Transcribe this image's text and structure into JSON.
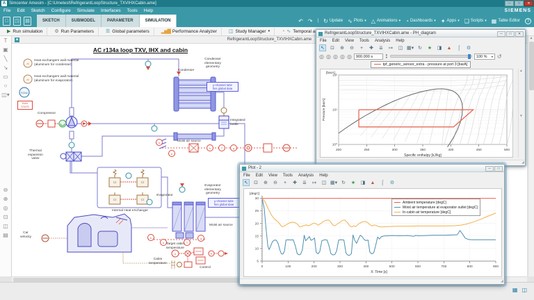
{
  "window": {
    "title": "Simcenter Amesim - [C:\\Umetest\\RefrigerantLoopStructure_TXVIHXCabin.ame]",
    "brand": "SIEMENS"
  },
  "menu": {
    "items": [
      "File",
      "Edit",
      "Sketch",
      "Configure",
      "Simulate",
      "Interfaces",
      "Tools",
      "Help"
    ]
  },
  "ribbon": {
    "tabs": [
      {
        "label": "SKETCH"
      },
      {
        "label": "SUBMODEL"
      },
      {
        "label": "PARAMETER"
      },
      {
        "label": "SIMULATION"
      }
    ],
    "update_label": "Update",
    "plots_label": "Plots",
    "animations_label": "Animations",
    "dashboards_label": "Dashboards",
    "apps_label": "Apps",
    "scripts_label": "Scripts",
    "table_editor_label": "Table Editor"
  },
  "run_toolbar": {
    "run_simulation": "Run simulation",
    "run_parameters": "Run Parameters",
    "global_parameters": "Global parameters",
    "performance_analyzer": "Performance Analyzer",
    "study_manager": "Study Manager",
    "temporal_analysis": "Temporal analysis"
  },
  "document": {
    "tab_title": "RefrigerantLoopStructure_TXVIHXCabin.ame",
    "close": "×"
  },
  "sketch": {
    "title": "AC r134a loop TXV, IHX and cabin",
    "al_label": "Al",
    "ct_label": "Ct",
    "labels": {
      "ann_cond": "Heat exchangers wall material\n(aluminum for condenser)",
      "ann_evap": "Heat exchangers wall material\n(aluminum for evaporator)",
      "r134a": "R134a",
      "run_stats": "RUN\nSTATS",
      "compressor": "Compressor",
      "condenser": "Condenser",
      "cond_geom": "Condenser\nelementary\ngeometry",
      "cond_fins": "μ-channel tube\nfins global data",
      "bottle": "Integrated\nbottle",
      "moist_cond": "Moist air source",
      "txv": "Thermal\nexpansion\nvalve",
      "ihx": "Internal Heat eXchanger",
      "evap": "Evaporator",
      "evap_geom": "Evaporator\nelementary\ngeometry",
      "evap_fins": "μ-channel tube\nfins global data",
      "moist_evap": "Moist air source",
      "car_vel": "Car\nvelocity",
      "target_cabin": "Target cabin\ntemperature",
      "cabin_temp": "Cabin\ntemperature",
      "control": "Control"
    }
  },
  "ph_window": {
    "title": "RefrigerantLoopStructure_TXVIHXCabin.ame - PH_diagram",
    "menus": [
      "File",
      "Edit",
      "View",
      "Tools",
      "Analysis",
      "Help"
    ],
    "time_value": "900.000 s",
    "zoom_value": "100 %",
    "legend": "tpf_generic_sensor_extra - pressure at port 3 [barA]"
  },
  "plot_window": {
    "title": "Plot - 2",
    "menus": [
      "File",
      "Edit",
      "View",
      "Tools",
      "Analysis",
      "Help"
    ]
  },
  "chart_data": [
    {
      "id": "ph_diagram",
      "type": "line",
      "xlabel": "Specific enthalpy [kJ/kg]",
      "ylabel": "Pressure [barA]",
      "y_unit": "[barA]",
      "xlim": [
        200,
        500
      ],
      "ylim_log10": [
        0,
        2
      ],
      "x_ticks": [
        200,
        250,
        300,
        350,
        400,
        450,
        500
      ],
      "y_ticks": [
        {
          "p": 100,
          "label": "10²"
        },
        {
          "p": 10,
          "label": "10¹"
        },
        {
          "p": 1,
          "label": "10⁰"
        }
      ],
      "legend": [
        {
          "label": "tpf_generic_sensor_extra - pressure at port 3 [barA]",
          "color": "#e8604c"
        }
      ],
      "saturation_dome": [
        [
          200,
          2.1
        ],
        [
          212,
          2.9
        ],
        [
          224,
          3.9
        ],
        [
          236,
          5.2
        ],
        [
          248,
          6.8
        ],
        [
          260,
          8.7
        ],
        [
          272,
          11
        ],
        [
          284,
          13.8
        ],
        [
          296,
          17
        ],
        [
          308,
          20.5
        ],
        [
          320,
          24.2
        ],
        [
          332,
          28
        ],
        [
          344,
          31.8
        ],
        [
          355,
          35
        ],
        [
          365,
          37.5
        ],
        [
          375,
          39.5
        ],
        [
          385,
          40
        ],
        [
          394,
          38.5
        ],
        [
          402,
          35.5
        ],
        [
          408,
          31.5
        ],
        [
          413,
          26.5
        ],
        [
          417,
          21
        ],
        [
          420,
          15.5
        ],
        [
          421,
          11
        ],
        [
          420,
          7
        ],
        [
          417,
          4.4
        ],
        [
          412,
          2.7
        ],
        [
          405,
          1.6
        ],
        [
          398,
          1.05
        ],
        [
          394,
          0.85
        ]
      ],
      "cycle": [
        [
          236,
          10
        ],
        [
          440,
          10
        ],
        [
          405,
          3.2
        ],
        [
          236,
          3.2
        ],
        [
          236,
          10
        ]
      ],
      "cycle_color": "#e8604c"
    },
    {
      "id": "plot2",
      "type": "line",
      "xlabel": "X: Time [s]",
      "y_unit": "[degC]",
      "xlim": [
        0,
        900
      ],
      "ylim": [
        5,
        31
      ],
      "x_ticks": [
        0,
        100,
        200,
        300,
        400,
        500,
        600,
        700,
        800,
        900
      ],
      "y_ticks": [
        30,
        25,
        20,
        15,
        10,
        5
      ],
      "legend_position": "top-right",
      "series": [
        {
          "name": "Ambient temperature [degC]",
          "color": "#e8604c",
          "points": [
            [
              0,
              30
            ],
            [
              900,
              30
            ]
          ]
        },
        {
          "name": "Moist air temperature at evaporator outlet [degC]",
          "color": "#4d8fae",
          "points": [
            [
              0,
              30
            ],
            [
              8,
              26
            ],
            [
              15,
              18
            ],
            [
              22,
              11
            ],
            [
              27,
              9.6
            ],
            [
              33,
              11
            ],
            [
              40,
              12.8
            ],
            [
              48,
              13.4
            ],
            [
              55,
              13.3
            ],
            [
              62,
              12
            ],
            [
              68,
              9.5
            ],
            [
              74,
              7.9
            ],
            [
              80,
              7.8
            ],
            [
              86,
              9
            ],
            [
              92,
              13.4
            ],
            [
              100,
              13.5
            ],
            [
              110,
              13.4
            ],
            [
              120,
              13.5
            ],
            [
              128,
              11
            ],
            [
              135,
              8
            ],
            [
              142,
              7.5
            ],
            [
              148,
              7.7
            ],
            [
              155,
              9.5
            ],
            [
              162,
              15.3
            ],
            [
              168,
              13.1
            ],
            [
              175,
              13.9
            ],
            [
              182,
              14.8
            ],
            [
              188,
              13.3
            ],
            [
              195,
              13.6
            ],
            [
              202,
              14.2
            ],
            [
              208,
              8.5
            ],
            [
              215,
              7.9
            ],
            [
              222,
              8.8
            ],
            [
              230,
              13.1
            ],
            [
              240,
              13.5
            ],
            [
              250,
              13.4
            ],
            [
              258,
              11
            ],
            [
              265,
              8
            ],
            [
              272,
              7.5
            ],
            [
              280,
              7.6
            ],
            [
              287,
              9
            ],
            [
              295,
              13.4
            ],
            [
              305,
              13.5
            ],
            [
              315,
              13.4
            ],
            [
              323,
              8.2
            ],
            [
              330,
              7.4
            ],
            [
              337,
              7.3
            ],
            [
              344,
              8
            ],
            [
              350,
              15.4
            ],
            [
              357,
              13.2
            ],
            [
              364,
              12.1
            ],
            [
              371,
              13.8
            ],
            [
              378,
              15.3
            ],
            [
              385,
              14.8
            ],
            [
              393,
              13.6
            ],
            [
              400,
              13.2
            ],
            [
              408,
              13.4
            ],
            [
              415,
              8.6
            ],
            [
              422,
              7.9
            ],
            [
              430,
              8.3
            ],
            [
              438,
              11.5
            ],
            [
              445,
              14.6
            ],
            [
              452,
              13.8
            ],
            [
              460,
              14.8
            ],
            [
              470,
              15
            ],
            [
              485,
              15.1
            ],
            [
              500,
              15.2
            ],
            [
              530,
              15.1
            ],
            [
              560,
              15.2
            ],
            [
              585,
              14.9
            ],
            [
              592,
              15.3
            ],
            [
              600,
              15.1
            ],
            [
              630,
              15.2
            ],
            [
              660,
              15.3
            ],
            [
              700,
              15.3
            ],
            [
              730,
              15.4
            ],
            [
              752,
              15.5
            ],
            [
              762,
              17.2
            ],
            [
              772,
              15.8
            ],
            [
              782,
              14.2
            ],
            [
              795,
              13.6
            ],
            [
              810,
              13.5
            ],
            [
              850,
              13.5
            ],
            [
              900,
              13.5
            ]
          ]
        },
        {
          "name": "In-cabin air temperature [degC]",
          "color": "#f2b14e",
          "points": [
            [
              0,
              30
            ],
            [
              12,
              28.5
            ],
            [
              25,
              25.5
            ],
            [
              38,
              23
            ],
            [
              50,
              21.5
            ],
            [
              62,
              20.6
            ],
            [
              72,
              19.2
            ],
            [
              78,
              18.7
            ],
            [
              85,
              19
            ],
            [
              95,
              19.6
            ],
            [
              105,
              20.2
            ],
            [
              115,
              20.5
            ],
            [
              125,
              20.4
            ],
            [
              135,
              19.8
            ],
            [
              145,
              18.6
            ],
            [
              152,
              18.8
            ],
            [
              160,
              19.1
            ],
            [
              170,
              19.4
            ],
            [
              178,
              19.1
            ],
            [
              188,
              19.5
            ],
            [
              198,
              20.1
            ],
            [
              208,
              19.9
            ],
            [
              215,
              19.3
            ],
            [
              225,
              19.9
            ],
            [
              235,
              20.7
            ],
            [
              245,
              21.2
            ],
            [
              255,
              21.4
            ],
            [
              263,
              20.8
            ],
            [
              272,
              19.4
            ],
            [
              280,
              19.1
            ],
            [
              290,
              19.8
            ],
            [
              300,
              20.5
            ],
            [
              310,
              21.2
            ],
            [
              318,
              21.4
            ],
            [
              328,
              20.4
            ],
            [
              338,
              19
            ],
            [
              346,
              18.6
            ],
            [
              354,
              19.1
            ],
            [
              360,
              18.7
            ],
            [
              368,
              19.5
            ],
            [
              376,
              20.1
            ],
            [
              386,
              20.6
            ],
            [
              396,
              20.8
            ],
            [
              406,
              20.4
            ],
            [
              415,
              19.5
            ],
            [
              424,
              19
            ],
            [
              432,
              19.4
            ],
            [
              440,
              19.2
            ],
            [
              450,
              18.7
            ],
            [
              460,
              18.6
            ],
            [
              475,
              18.7
            ],
            [
              495,
              18.8
            ],
            [
              520,
              18.9
            ],
            [
              560,
              18.9
            ],
            [
              600,
              19
            ],
            [
              650,
              19
            ],
            [
              700,
              19
            ],
            [
              740,
              19.1
            ],
            [
              765,
              19.3
            ],
            [
              785,
              19.7
            ],
            [
              805,
              20.3
            ],
            [
              825,
              21
            ],
            [
              845,
              21.8
            ],
            [
              865,
              22.7
            ],
            [
              885,
              23.5
            ],
            [
              900,
              24.1
            ]
          ]
        }
      ]
    }
  ]
}
